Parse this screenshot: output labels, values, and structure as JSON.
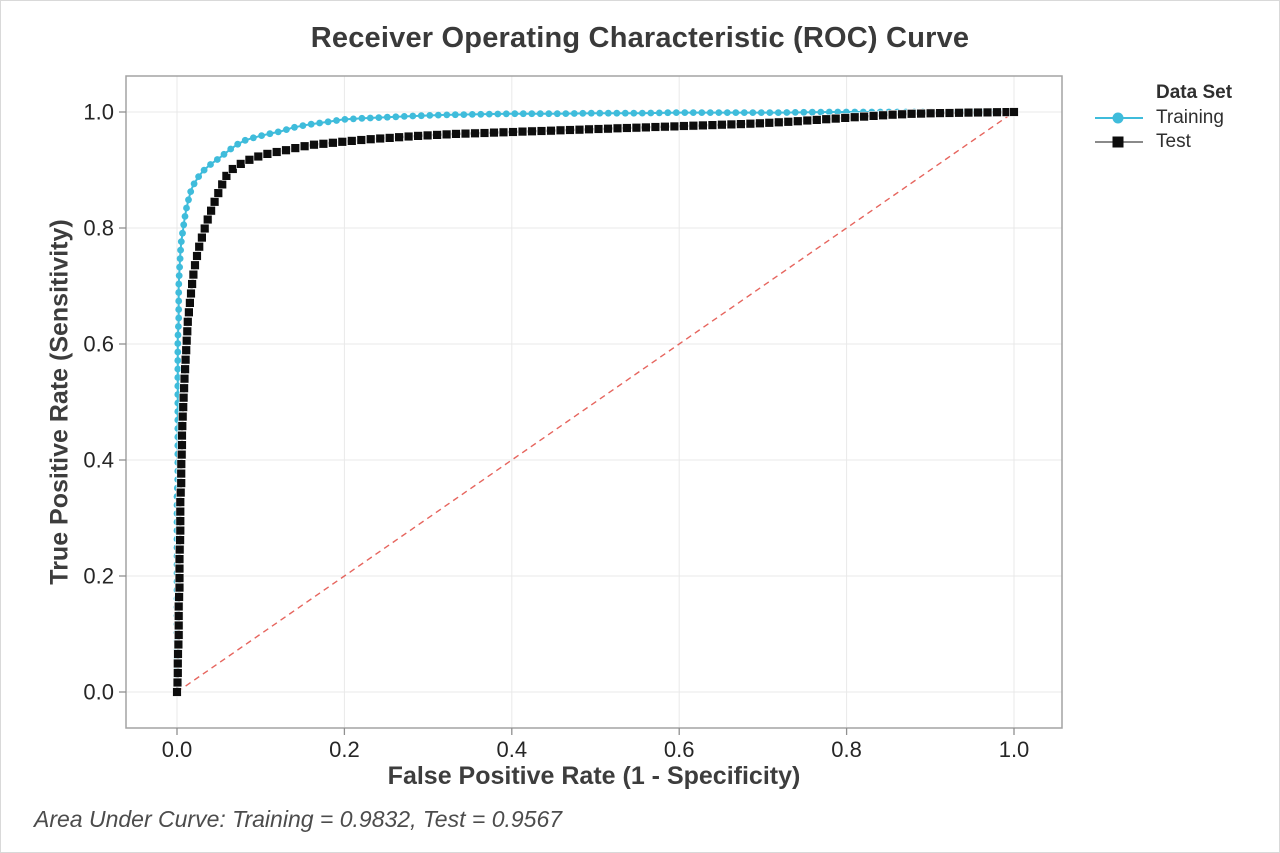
{
  "chart_data": {
    "type": "line",
    "title": "Receiver Operating Characteristic (ROC) Curve",
    "xlabel": "False Positive Rate (1 - Specificity)",
    "ylabel": "True Positive Rate (Sensitivity)",
    "footnote": "Area Under Curve: Training = 0.9832, Test = 0.9567",
    "auc": {
      "Training": 0.9832,
      "Test": 0.9567
    },
    "xlim": [
      0,
      1
    ],
    "ylim": [
      0,
      1
    ],
    "grid": true,
    "x_ticks": [
      0,
      0.2,
      0.4,
      0.6,
      0.8,
      1
    ],
    "x_tick_labels": [
      "0.0",
      "0.2",
      "0.4",
      "0.6",
      "0.8",
      "1.0"
    ],
    "y_ticks": [
      0,
      0.2,
      0.4,
      0.6,
      0.8,
      1
    ],
    "y_tick_labels": [
      "0.0",
      "0.2",
      "0.4",
      "0.6",
      "0.8",
      "1.0"
    ],
    "colors": {
      "grid": "#e9e9e9",
      "frame": "#a3a3a3",
      "tick": "#909090",
      "tick_label": "#262626",
      "reference": "#e4554d"
    },
    "legend": {
      "title": "Data Set",
      "position": "right",
      "items": [
        {
          "label": "Training",
          "marker": "circle",
          "color": "#3fbcdb",
          "line_color": "#3fbcdb"
        },
        {
          "label": "Test",
          "marker": "square",
          "color": "#0d0d0d",
          "line_color": "#8a8a8a"
        }
      ]
    },
    "reference_line": {
      "type": "diagonal",
      "from": [
        0,
        0
      ],
      "to": [
        1,
        1
      ],
      "dash": true,
      "color": "#e4554d"
    },
    "series": [
      {
        "name": "Training",
        "marker": "circle",
        "color": "#3fbcdb",
        "points": [
          [
            0.0,
            0.0
          ],
          [
            0.0,
            0.025
          ],
          [
            0.0,
            0.05
          ],
          [
            0.0,
            0.075
          ],
          [
            0.0,
            0.1
          ],
          [
            0.0,
            0.13
          ],
          [
            0.0,
            0.16
          ],
          [
            0.0,
            0.19
          ],
          [
            0.0,
            0.22
          ],
          [
            0.0,
            0.25
          ],
          [
            0.0,
            0.28
          ],
          [
            0.0,
            0.31
          ],
          [
            0.0,
            0.34
          ],
          [
            0.001,
            0.37
          ],
          [
            0.001,
            0.4
          ],
          [
            0.001,
            0.43
          ],
          [
            0.001,
            0.46
          ],
          [
            0.001,
            0.49
          ],
          [
            0.001,
            0.52
          ],
          [
            0.001,
            0.55
          ],
          [
            0.001,
            0.58
          ],
          [
            0.001,
            0.61
          ],
          [
            0.002,
            0.64
          ],
          [
            0.002,
            0.67
          ],
          [
            0.002,
            0.7
          ],
          [
            0.003,
            0.73
          ],
          [
            0.004,
            0.755
          ],
          [
            0.005,
            0.775
          ],
          [
            0.007,
            0.795
          ],
          [
            0.009,
            0.815
          ],
          [
            0.011,
            0.832
          ],
          [
            0.014,
            0.85
          ],
          [
            0.017,
            0.866
          ],
          [
            0.021,
            0.878
          ],
          [
            0.026,
            0.889
          ],
          [
            0.031,
            0.898
          ],
          [
            0.037,
            0.906
          ],
          [
            0.043,
            0.913
          ],
          [
            0.05,
            0.92
          ],
          [
            0.057,
            0.928
          ],
          [
            0.064,
            0.936
          ],
          [
            0.072,
            0.944
          ],
          [
            0.081,
            0.951
          ],
          [
            0.09,
            0.955
          ],
          [
            0.1,
            0.959
          ],
          [
            0.112,
            0.963
          ],
          [
            0.125,
            0.967
          ],
          [
            0.138,
            0.973
          ],
          [
            0.152,
            0.977
          ],
          [
            0.165,
            0.98
          ],
          [
            0.18,
            0.983
          ],
          [
            0.198,
            0.987
          ],
          [
            0.22,
            0.989
          ],
          [
            0.25,
            0.991
          ],
          [
            0.28,
            0.993
          ],
          [
            0.32,
            0.995
          ],
          [
            0.36,
            0.996
          ],
          [
            0.4,
            0.997
          ],
          [
            0.45,
            0.997
          ],
          [
            0.5,
            0.998
          ],
          [
            0.55,
            0.998
          ],
          [
            0.6,
            0.999
          ],
          [
            0.66,
            0.999
          ],
          [
            0.72,
            0.999
          ],
          [
            0.78,
            1.0
          ],
          [
            0.85,
            1.0
          ],
          [
            0.92,
            1.0
          ],
          [
            1.0,
            1.0
          ]
        ]
      },
      {
        "name": "Test",
        "marker": "square",
        "color": "#0d0d0d",
        "points": [
          [
            0.0,
            0.0
          ],
          [
            0.001,
            0.03
          ],
          [
            0.001,
            0.06
          ],
          [
            0.002,
            0.09
          ],
          [
            0.002,
            0.12
          ],
          [
            0.002,
            0.15
          ],
          [
            0.003,
            0.18
          ],
          [
            0.003,
            0.21
          ],
          [
            0.003,
            0.24
          ],
          [
            0.004,
            0.27
          ],
          [
            0.004,
            0.3
          ],
          [
            0.004,
            0.33
          ],
          [
            0.005,
            0.36
          ],
          [
            0.005,
            0.39
          ],
          [
            0.006,
            0.42
          ],
          [
            0.006,
            0.45
          ],
          [
            0.007,
            0.48
          ],
          [
            0.008,
            0.51
          ],
          [
            0.009,
            0.54
          ],
          [
            0.01,
            0.565
          ],
          [
            0.011,
            0.59
          ],
          [
            0.012,
            0.615
          ],
          [
            0.013,
            0.64
          ],
          [
            0.015,
            0.665
          ],
          [
            0.017,
            0.69
          ],
          [
            0.019,
            0.715
          ],
          [
            0.022,
            0.74
          ],
          [
            0.026,
            0.765
          ],
          [
            0.03,
            0.785
          ],
          [
            0.034,
            0.803
          ],
          [
            0.038,
            0.82
          ],
          [
            0.043,
            0.838
          ],
          [
            0.048,
            0.856
          ],
          [
            0.053,
            0.872
          ],
          [
            0.058,
            0.888
          ],
          [
            0.065,
            0.9
          ],
          [
            0.073,
            0.908
          ],
          [
            0.082,
            0.915
          ],
          [
            0.092,
            0.921
          ],
          [
            0.103,
            0.926
          ],
          [
            0.115,
            0.93
          ],
          [
            0.13,
            0.934
          ],
          [
            0.145,
            0.939
          ],
          [
            0.16,
            0.943
          ],
          [
            0.18,
            0.946
          ],
          [
            0.2,
            0.949
          ],
          [
            0.23,
            0.953
          ],
          [
            0.26,
            0.956
          ],
          [
            0.29,
            0.959
          ],
          [
            0.33,
            0.962
          ],
          [
            0.37,
            0.964
          ],
          [
            0.41,
            0.966
          ],
          [
            0.45,
            0.968
          ],
          [
            0.49,
            0.97
          ],
          [
            0.53,
            0.972
          ],
          [
            0.57,
            0.974
          ],
          [
            0.61,
            0.976
          ],
          [
            0.65,
            0.978
          ],
          [
            0.69,
            0.98
          ],
          [
            0.73,
            0.983
          ],
          [
            0.76,
            0.986
          ],
          [
            0.79,
            0.989
          ],
          [
            0.82,
            0.992
          ],
          [
            0.85,
            0.995
          ],
          [
            0.88,
            0.997
          ],
          [
            0.91,
            0.998
          ],
          [
            0.95,
            0.999
          ],
          [
            1.0,
            1.0
          ]
        ]
      }
    ]
  }
}
